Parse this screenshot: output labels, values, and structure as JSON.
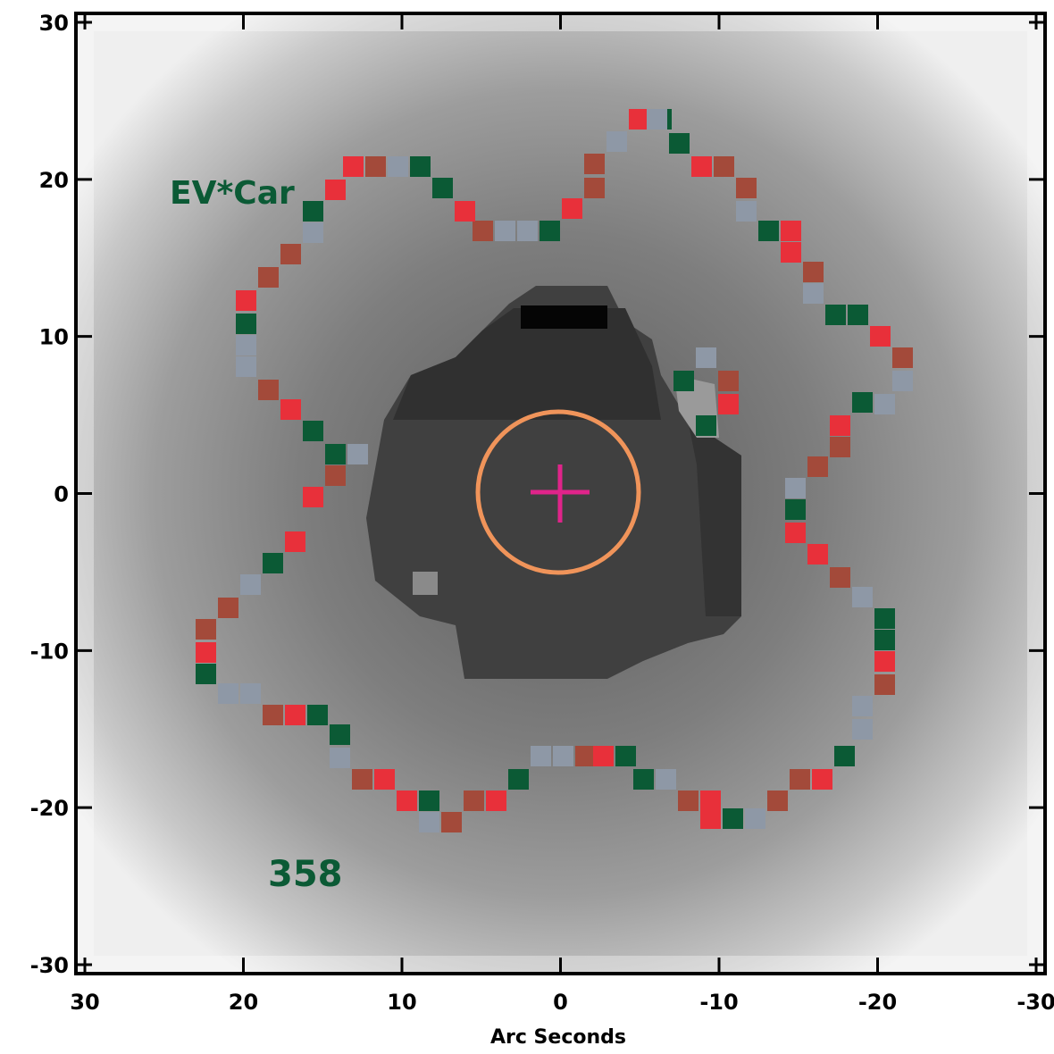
{
  "figure": {
    "object_label": "EV*Car",
    "frame_number": "358",
    "x_axis_title": "Arc Seconds",
    "x_ticks": [
      "30",
      "20",
      "10",
      "0",
      "-10",
      "-20",
      "-30"
    ],
    "y_ticks": [
      "30",
      "20",
      "10",
      "0",
      "-10",
      "-20",
      "-30"
    ],
    "x_range": [
      30,
      -30
    ],
    "y_range": [
      -30,
      30
    ]
  },
  "colors": {
    "contour_red": "#e8303a",
    "contour_brown": "#a34a3a",
    "contour_green": "#0b5a35",
    "contour_gray": "#8e98a6",
    "label_green": "#0b5a35",
    "aperture_circle": "#f0945a",
    "center_cross": "#e0248a"
  }
}
